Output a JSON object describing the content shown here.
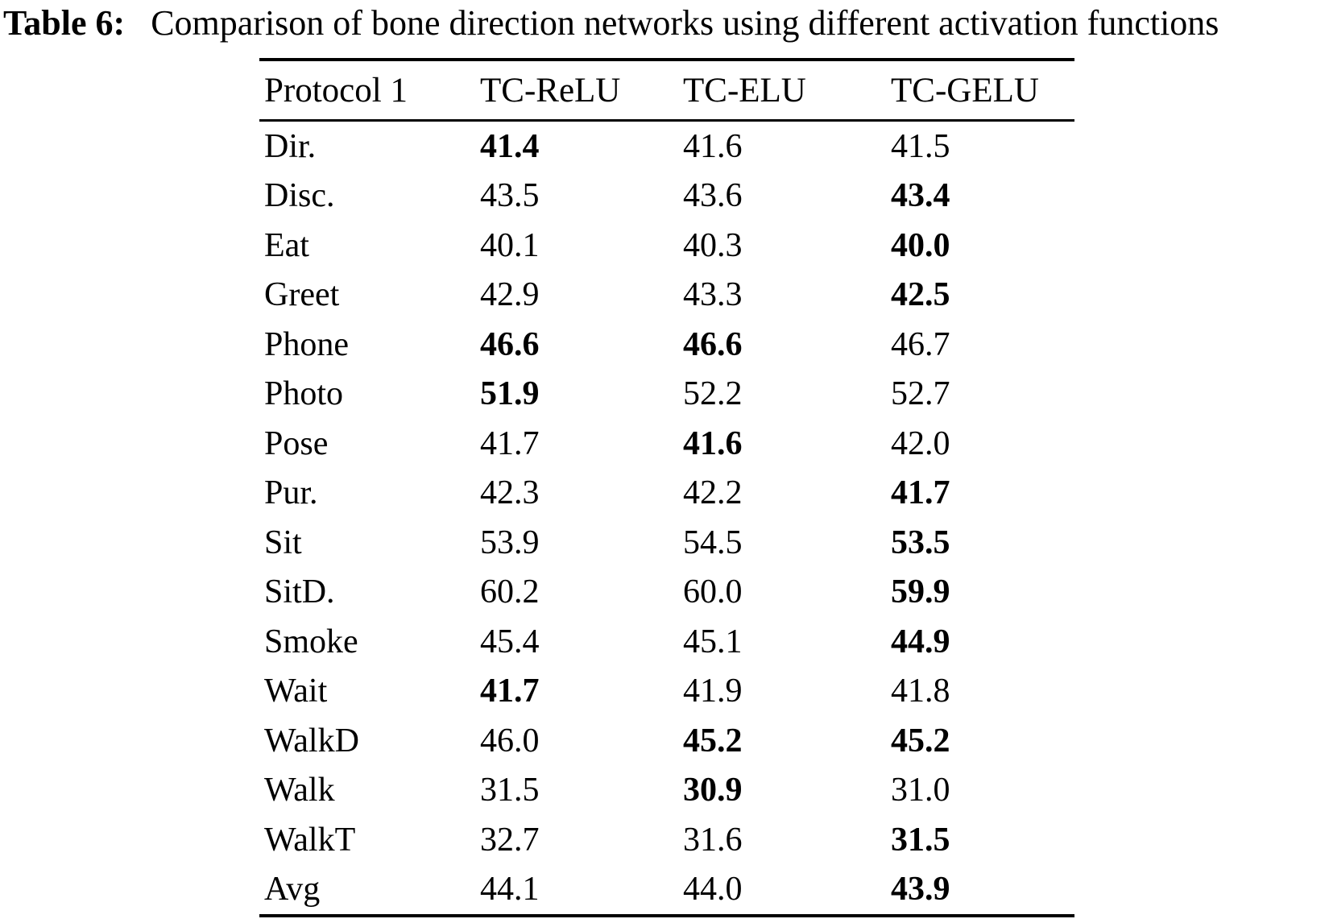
{
  "caption": {
    "label": "Table 6:",
    "text": "Comparison of bone direction networks using different activation functions"
  },
  "colors": {
    "text": "#000000",
    "background": "#ffffff",
    "rule": "#000000"
  },
  "table": {
    "columns": [
      "Protocol 1",
      "TC-ReLU",
      "TC-ELU",
      "TC-GELU"
    ],
    "rows": [
      {
        "label": "Dir.",
        "values": [
          "41.4",
          "41.6",
          "41.5"
        ],
        "bold": [
          true,
          false,
          false
        ]
      },
      {
        "label": "Disc.",
        "values": [
          "43.5",
          "43.6",
          "43.4"
        ],
        "bold": [
          false,
          false,
          true
        ]
      },
      {
        "label": "Eat",
        "values": [
          "40.1",
          "40.3",
          "40.0"
        ],
        "bold": [
          false,
          false,
          true
        ]
      },
      {
        "label": "Greet",
        "values": [
          "42.9",
          "43.3",
          "42.5"
        ],
        "bold": [
          false,
          false,
          true
        ]
      },
      {
        "label": "Phone",
        "values": [
          "46.6",
          "46.6",
          "46.7"
        ],
        "bold": [
          true,
          true,
          false
        ]
      },
      {
        "label": "Photo",
        "values": [
          "51.9",
          "52.2",
          "52.7"
        ],
        "bold": [
          true,
          false,
          false
        ]
      },
      {
        "label": "Pose",
        "values": [
          "41.7",
          "41.6",
          "42.0"
        ],
        "bold": [
          false,
          true,
          false
        ]
      },
      {
        "label": "Pur.",
        "values": [
          "42.3",
          "42.2",
          "41.7"
        ],
        "bold": [
          false,
          false,
          true
        ]
      },
      {
        "label": "Sit",
        "values": [
          "53.9",
          "54.5",
          "53.5"
        ],
        "bold": [
          false,
          false,
          true
        ]
      },
      {
        "label": "SitD.",
        "values": [
          "60.2",
          "60.0",
          "59.9"
        ],
        "bold": [
          false,
          false,
          true
        ]
      },
      {
        "label": "Smoke",
        "values": [
          "45.4",
          "45.1",
          "44.9"
        ],
        "bold": [
          false,
          false,
          true
        ]
      },
      {
        "label": "Wait",
        "values": [
          "41.7",
          "41.9",
          "41.8"
        ],
        "bold": [
          true,
          false,
          false
        ]
      },
      {
        "label": "WalkD",
        "values": [
          "46.0",
          "45.2",
          "45.2"
        ],
        "bold": [
          false,
          true,
          true
        ]
      },
      {
        "label": "Walk",
        "values": [
          "31.5",
          "30.9",
          "31.0"
        ],
        "bold": [
          false,
          true,
          false
        ]
      },
      {
        "label": "WalkT",
        "values": [
          "32.7",
          "31.6",
          "31.5"
        ],
        "bold": [
          false,
          false,
          true
        ]
      },
      {
        "label": "Avg",
        "values": [
          "44.1",
          "44.0",
          "43.9"
        ],
        "bold": [
          false,
          false,
          true
        ]
      }
    ]
  }
}
